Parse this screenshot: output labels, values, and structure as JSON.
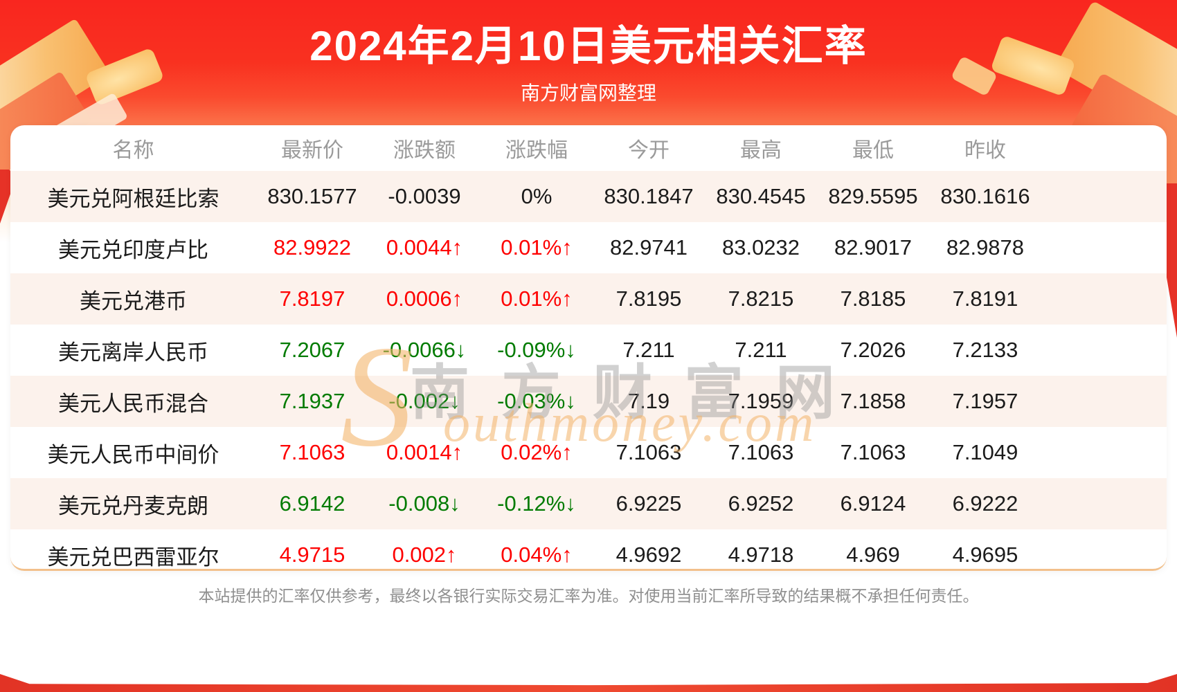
{
  "header": {
    "title": "2024年2月10日美元相关汇率",
    "subtitle": "南方财富网整理"
  },
  "table": {
    "columns": [
      "名称",
      "最新价",
      "涨跌额",
      "涨跌幅",
      "今开",
      "最高",
      "最低",
      "昨收"
    ],
    "rows": [
      {
        "name": "美元兑阿根廷比索",
        "latest": "830.1577",
        "change": "-0.0039",
        "change_pct": "0%",
        "open": "830.1847",
        "high": "830.4545",
        "low": "829.5595",
        "prev_close": "830.1616",
        "trend": "flat"
      },
      {
        "name": "美元兑印度卢比",
        "latest": "82.9922",
        "change": "0.0044↑",
        "change_pct": "0.01%↑",
        "open": "82.9741",
        "high": "83.0232",
        "low": "82.9017",
        "prev_close": "82.9878",
        "trend": "up"
      },
      {
        "name": "美元兑港币",
        "latest": "7.8197",
        "change": "0.0006↑",
        "change_pct": "0.01%↑",
        "open": "7.8195",
        "high": "7.8215",
        "low": "7.8185",
        "prev_close": "7.8191",
        "trend": "up"
      },
      {
        "name": "美元离岸人民币",
        "latest": "7.2067",
        "change": "-0.0066↓",
        "change_pct": "-0.09%↓",
        "open": "7.211",
        "high": "7.211",
        "low": "7.2026",
        "prev_close": "7.2133",
        "trend": "down"
      },
      {
        "name": "美元人民币混合",
        "latest": "7.1937",
        "change": "-0.002↓",
        "change_pct": "-0.03%↓",
        "open": "7.19",
        "high": "7.1959",
        "low": "7.1858",
        "prev_close": "7.1957",
        "trend": "down"
      },
      {
        "name": "美元人民币中间价",
        "latest": "7.1063",
        "change": "0.0014↑",
        "change_pct": "0.02%↑",
        "open": "7.1063",
        "high": "7.1063",
        "low": "7.1063",
        "prev_close": "7.1049",
        "trend": "up"
      },
      {
        "name": "美元兑丹麦克朗",
        "latest": "6.9142",
        "change": "-0.008↓",
        "change_pct": "-0.12%↓",
        "open": "6.9225",
        "high": "6.9252",
        "low": "6.9124",
        "prev_close": "6.9222",
        "trend": "down"
      },
      {
        "name": "美元兑巴西雷亚尔",
        "latest": "4.9715",
        "change": "0.002↑",
        "change_pct": "0.04%↑",
        "open": "4.9692",
        "high": "4.9718",
        "low": "4.969",
        "prev_close": "4.9695",
        "trend": "up"
      }
    ]
  },
  "watermark": {
    "cn": "南方财富网",
    "en_initial": "S",
    "en_rest": "outhmoney.com"
  },
  "footer": {
    "disclaimer": "本站提供的汇率仅供参考，最终以各银行实际交易汇率为准。对使用当前汇率所导致的结果概不承担任何责任。"
  },
  "colors": {
    "up": "#fe0101",
    "down": "#017b01",
    "flat": "#1a1a1a",
    "header_text": "#9a9a9a",
    "alt_row": "#fcf2ec",
    "divider": "#f2c08b",
    "accent_red": "#f9261f",
    "gold": "#f3b469"
  }
}
